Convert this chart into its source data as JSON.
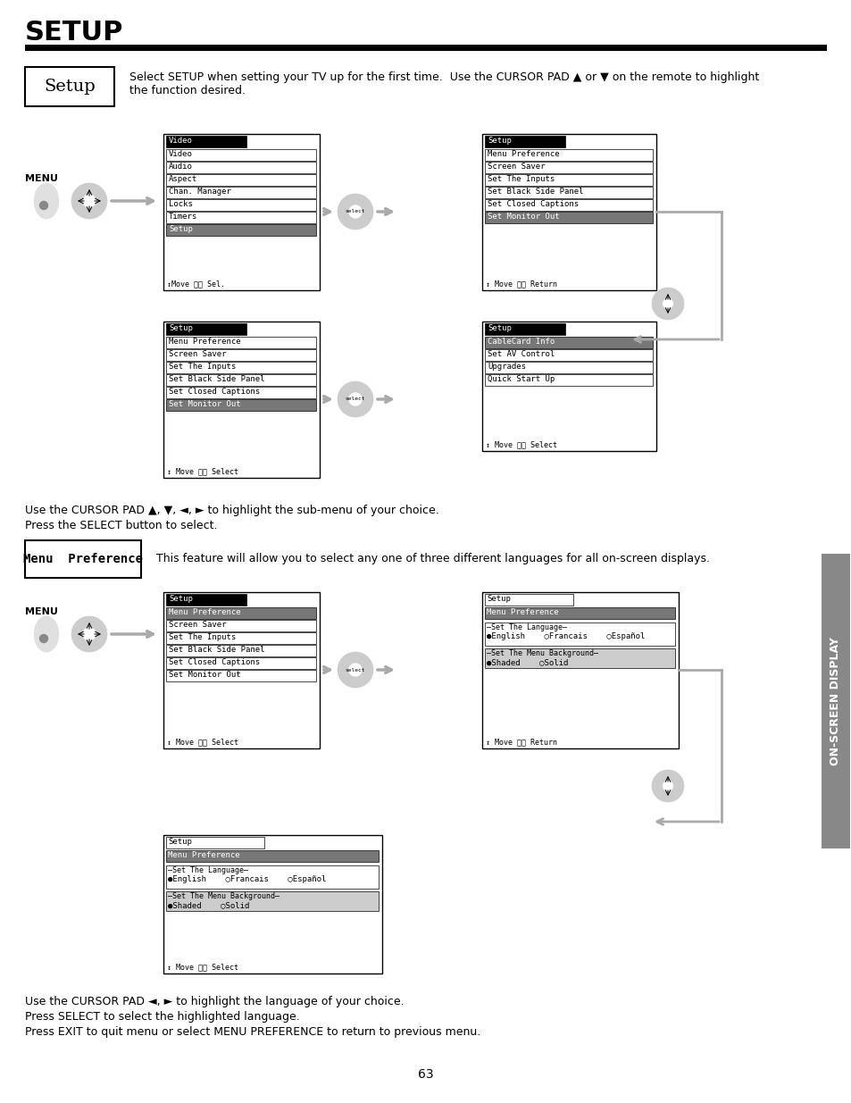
{
  "title": "SETUP",
  "background_color": "#ffffff",
  "page_number": "63",
  "sidebar_text": "ON-SCREEN DISPLAY",
  "setup_box_text": "Setup",
  "setup_desc": "Select SETUP when setting your TV up for the first time.  Use the CURSOR PAD ▲ or ▼ on the remote to highlight\nthe function desired.",
  "cursor_pad_text1": "Use the CURSOR PAD ▲, ▼, ◄, ► to highlight the sub-menu of your choice.",
  "cursor_pad_text2": "Press the SELECT button to select.",
  "menu_pref_box": "Menu  Preference",
  "menu_pref_desc": "This feature will allow you to select any one of three different languages for all on-screen displays.",
  "bottom_text1": "Use the CURSOR PAD ◄, ► to highlight the language of your choice.",
  "bottom_text2": "Press SELECT to select the highlighted language.",
  "bottom_text3": "Press EXIT to quit menu or select MENU PREFERENCE to return to previous menu.",
  "menu1_title": "Video",
  "menu1_items": [
    "Video",
    "Audio",
    "Aspect",
    "Chan. Manager",
    "Locks",
    "Timers",
    "Setup"
  ],
  "menu1_footer": "↕Move ⓢⓔ Sel.",
  "menu1_selected": "Setup",
  "menu2_title": "Setup",
  "menu2_items": [
    "Menu Preference",
    "Screen Saver",
    "Set The Inputs",
    "Set Black Side Panel",
    "Set Closed Captions",
    "Set Monitor Out"
  ],
  "menu2_footer": "↕ Move ⓢⓔ Return",
  "menu2_selected": "Set Monitor Out",
  "menu3_title": "Setup",
  "menu3_items": [
    "Menu Preference",
    "Screen Saver",
    "Set The Inputs",
    "Set Black Side Panel",
    "Set Closed Captions",
    "Set Monitor Out"
  ],
  "menu3_footer": "↕ Move ⓢⓔ Select",
  "menu3_selected": "Set Monitor Out",
  "menu4_title": "Setup",
  "menu4_items": [
    "CableCard Info",
    "Set AV Control",
    "Upgrades",
    "Quick Start Up"
  ],
  "menu4_footer": "↕ Move ⓢⓔ Select",
  "menu4_selected": "CableCard Info",
  "menu5_title": "Setup",
  "menu5_items": [
    "Menu Preference",
    "Screen Saver",
    "Set The Inputs",
    "Set Black Side Panel",
    "Set Closed Captions",
    "Set Monitor Out"
  ],
  "menu5_footer": "↕ Move ⓢⓔ Select",
  "menu5_selected": "Menu Preference",
  "menu6_title": "Setup",
  "menu6_header": "Menu Preference",
  "menu6_lang_label": "Set The Language",
  "menu6_lang_options": "●English    ○Francais    ○Español",
  "menu6_bg_label": "Set The Menu Background",
  "menu6_bg_options": "●Shaded    ○Solid",
  "menu6_footer": "↕ Move ⓢⓔ Return",
  "menu7_title": "Setup",
  "menu7_header": "Menu Preference",
  "menu7_lang_label": "Set The Language",
  "menu7_lang_options": "●English    ○Francais    ○Español",
  "menu7_bg_label": "Set The Menu Background",
  "menu7_bg_options": "●Shaded    ○Solid",
  "menu7_footer": "↕ Move ⓢⓔ Select"
}
